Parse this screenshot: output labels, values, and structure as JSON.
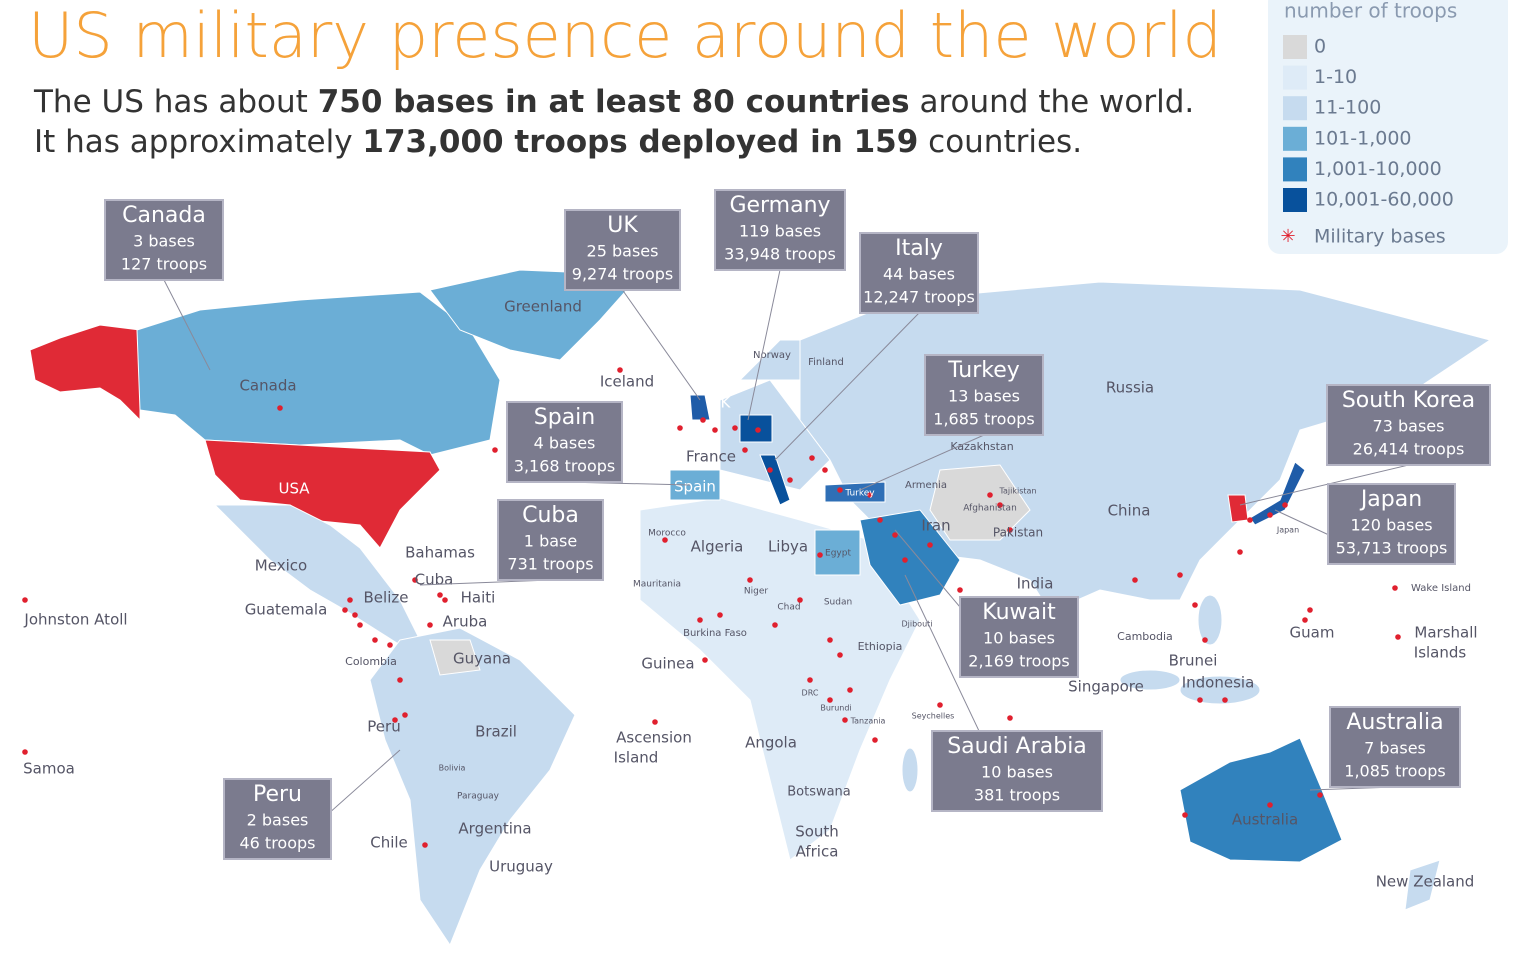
{
  "header": {
    "title": "US military presence around the world",
    "subtitle_lines": [
      [
        {
          "text": "The US has about ",
          "bold": false
        },
        {
          "text": "750 bases in at least 80 countries",
          "bold": true
        },
        {
          "text": " around the world.",
          "bold": false
        }
      ],
      [
        {
          "text": "It has approximately ",
          "bold": false
        },
        {
          "text": "173,000 troops deployed in 159",
          "bold": true
        },
        {
          "text": " countries.",
          "bold": false
        }
      ]
    ]
  },
  "legend": {
    "title": "number of troops",
    "items": [
      {
        "label": "0",
        "color": "#d9d9d9"
      },
      {
        "label": "1-10",
        "color": "#deebf7"
      },
      {
        "label": "11-100",
        "color": "#c6dbef"
      },
      {
        "label": "101-1,000",
        "color": "#6baed6"
      },
      {
        "label": "1,001-10,000",
        "color": "#3182bd"
      },
      {
        "label": "10,001-60,000",
        "color": "#08519c"
      }
    ],
    "bases_label": "Military bases",
    "bases_color": "#e0202e"
  },
  "callouts": [
    {
      "name": "Canada",
      "bases": "3 bases",
      "troops": "127 troops"
    },
    {
      "name": "UK",
      "bases": "25 bases",
      "troops": "9,274 troops"
    },
    {
      "name": "Germany",
      "bases": "119 bases",
      "troops": "33,948 troops"
    },
    {
      "name": "Italy",
      "bases": "44 bases",
      "troops": "12,247 troops"
    },
    {
      "name": "Spain",
      "bases": "4 bases",
      "troops": "3,168 troops"
    },
    {
      "name": "Turkey",
      "bases": "13 bases",
      "troops": "1,685 troops"
    },
    {
      "name": "Cuba",
      "bases": "1 base",
      "troops": "731 troops"
    },
    {
      "name": "South Korea",
      "bases": "73 bases",
      "troops": "26,414 troops"
    },
    {
      "name": "Japan",
      "bases": "120 bases",
      "troops": "53,713 troops"
    },
    {
      "name": "Kuwait",
      "bases": "10 bases",
      "troops": "2,169 troops"
    },
    {
      "name": "Saudi Arabia",
      "bases": "10 bases",
      "troops": "381 troops"
    },
    {
      "name": "Australia",
      "bases": "7 bases",
      "troops": "1,085 troops"
    },
    {
      "name": "Peru",
      "bases": "2 bases",
      "troops": "46 troops"
    }
  ],
  "map_labels": [
    "Greenland",
    "Canada",
    "Iceland",
    "UK",
    "Norway",
    "Finland",
    "Russia",
    "France",
    "Spain",
    "Kazakhstan",
    "Armenia",
    "Turkey",
    "Tajikistan",
    "Afghanistan",
    "Iran",
    "Pakistan",
    "China",
    "USA",
    "Mexico",
    "Bahamas",
    "Cuba",
    "Belize",
    "Haiti",
    "Guatemala",
    "Aruba",
    "Colombia",
    "Guyana",
    "Johnston Atoll",
    "Samoa",
    "Peru",
    "Brazil",
    "Bolivia",
    "Paraguay",
    "Argentina",
    "Chile",
    "Uruguay",
    "Morocco",
    "Algeria",
    "Libya",
    "Egypt",
    "Mauritania",
    "Niger",
    "Chad",
    "Sudan",
    "Burkina Faso",
    "Djibouti",
    "Ethiopia",
    "Guinea",
    "India",
    "Cambodia",
    "Brunei",
    "Singapore",
    "Indonesia",
    "Guam",
    "Marshall",
    "Islands",
    "Wake Island",
    "Japan",
    "DRC",
    "Burundi",
    "Tanzania",
    "Seychelles",
    "Ascension",
    "Island",
    "Angola",
    "Botswana",
    "South",
    "Africa",
    "Australia",
    "New Zealand"
  ]
}
